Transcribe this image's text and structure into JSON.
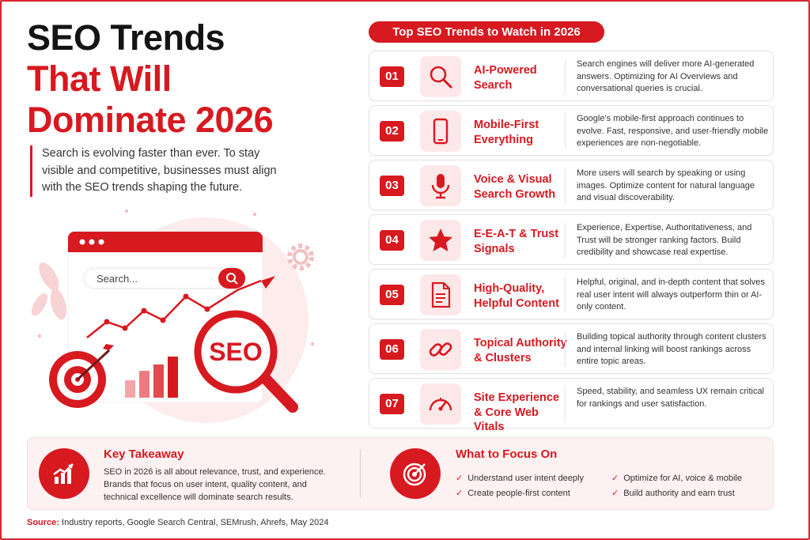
{
  "title": {
    "line1": "SEO Trends",
    "line2": "That Will",
    "line3": "Dominate 2026"
  },
  "intro": "Search is evolving faster than ever. To stay visible and competitive, businesses must align with the SEO trends shaping the future.",
  "illustration": {
    "search_placeholder": "Search...",
    "seo_label": "SEO"
  },
  "trends_header": "Top SEO Trends to Watch in 2026",
  "trends": [
    {
      "num": "01",
      "icon": "search-icon",
      "name": "AI-Powered Search",
      "desc": "Search engines will deliver more AI-generated answers. Optimizing for AI Overviews and conversational queries is crucial."
    },
    {
      "num": "02",
      "icon": "smartphone-icon",
      "name": "Mobile-First Everything",
      "desc": "Google's mobile-first approach continues to evolve. Fast, responsive, and user-friendly mobile experiences are non-negotiable."
    },
    {
      "num": "03",
      "icon": "microphone-icon",
      "name": "Voice & Visual Search Growth",
      "desc": "More users will search by speaking or using images. Optimize content for natural language and visual discoverability."
    },
    {
      "num": "04",
      "icon": "star-icon",
      "name": "E-E-A-T & Trust Signals",
      "desc": "Experience, Expertise, Authoritativeness, and Trust will be stronger ranking factors. Build credibility and showcase real expertise."
    },
    {
      "num": "05",
      "icon": "document-icon",
      "name": "High-Quality, Helpful Content",
      "desc": "Helpful, original, and in-depth content that solves real user intent will always outperform thin or AI-only content."
    },
    {
      "num": "06",
      "icon": "link-icon",
      "name": "Topical Authority & Clusters",
      "desc": "Building topical authority through content clusters and internal linking will boost rankings across entire topic areas."
    },
    {
      "num": "07",
      "icon": "speedometer-icon",
      "name": "Site Experience & Core Web Vitals",
      "desc": "Speed, stability, and seamless UX remain critical for rankings and user satisfaction."
    }
  ],
  "key_takeaway": {
    "title": "Key Takeaway",
    "text": "SEO in 2026 is all about relevance, trust, and experience. Brands that focus on user intent, quality content, and technical excellence will dominate search results."
  },
  "focus": {
    "title": "What to Focus On",
    "items": [
      "Understand user intent deeply",
      "Create people-first content",
      "Optimize for AI, voice & mobile",
      "Build authority and earn trust"
    ]
  },
  "source": {
    "label": "Source:",
    "text": " Industry reports, Google Search Central, SEMrush, Ahrefs, May 2024"
  },
  "colors": {
    "accent": "#d71920",
    "soft": "#fde8e9"
  }
}
